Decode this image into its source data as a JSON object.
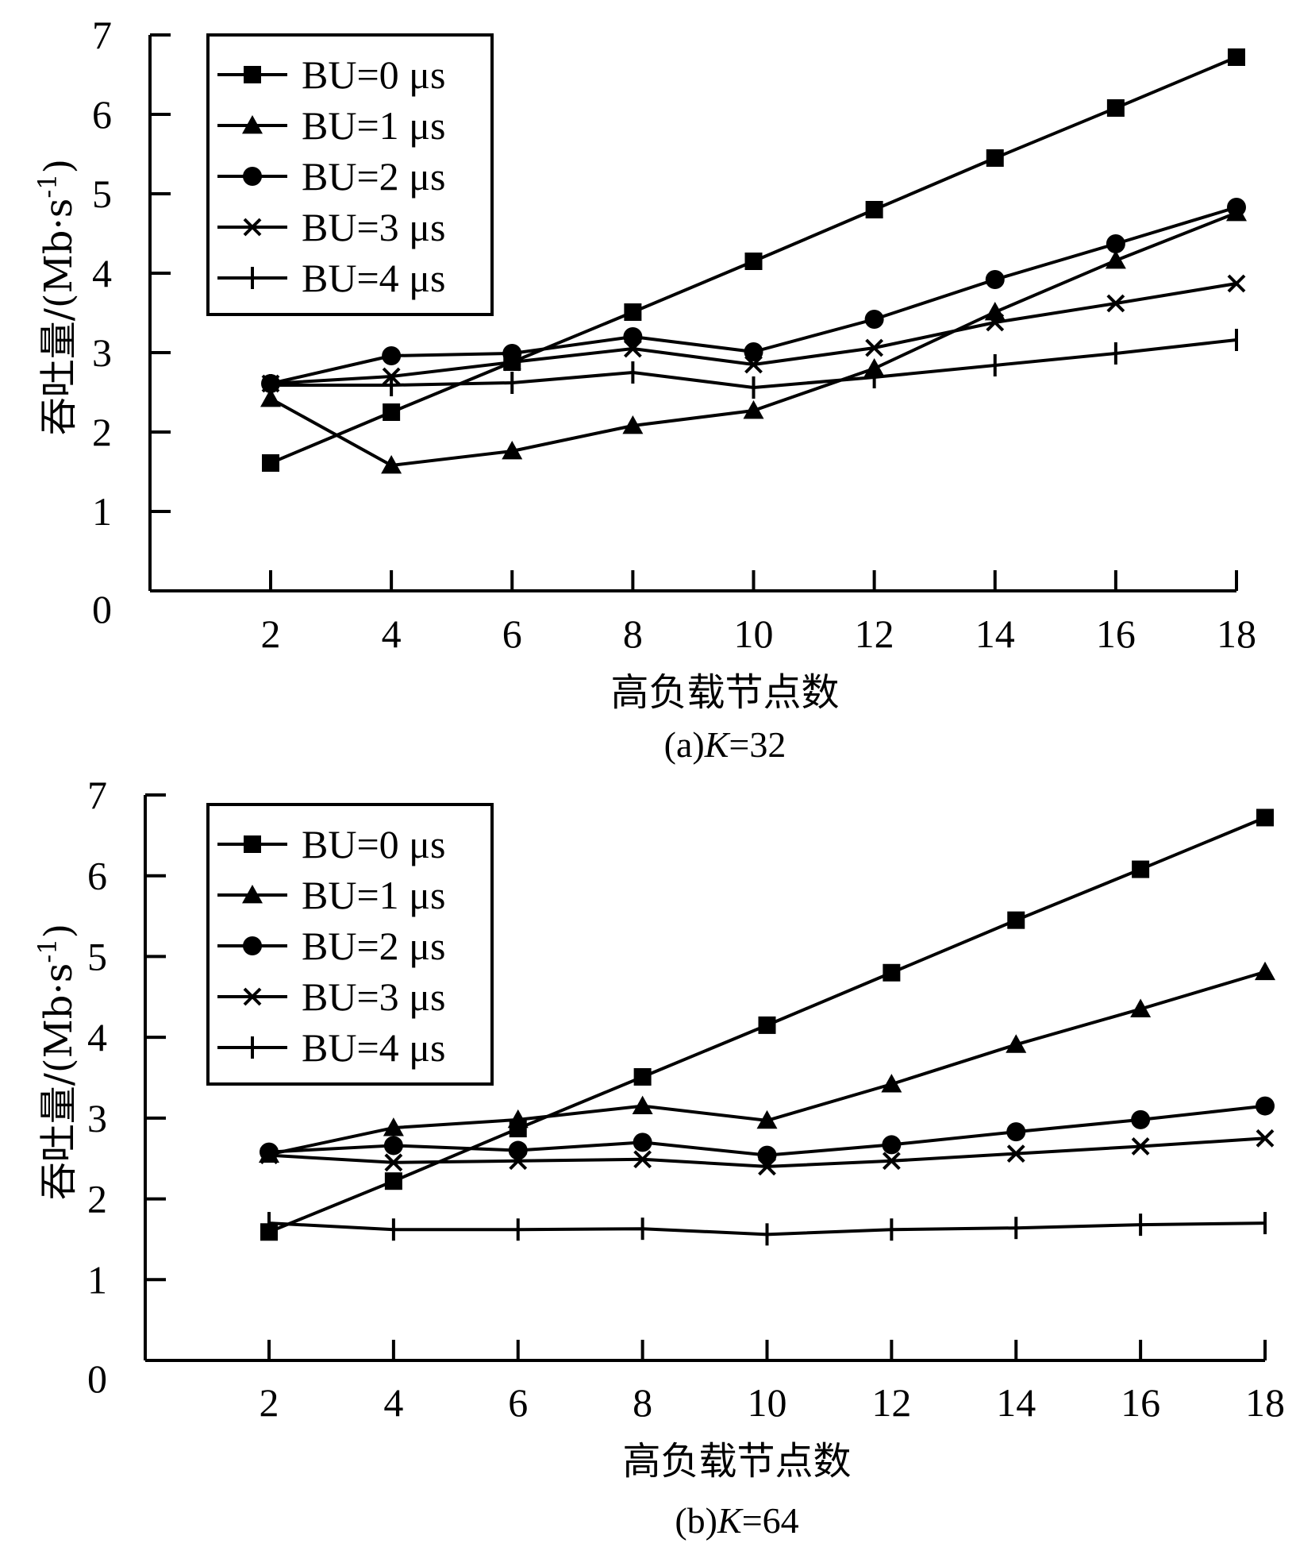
{
  "colors": {
    "ink": "#000000",
    "background": "#ffffff"
  },
  "chart_data": [
    {
      "type": "line",
      "title": "(a)K=32",
      "caption_prefix": "(a)",
      "caption_var": "K",
      "caption_value": "=32",
      "xlabel": "高负载节点数",
      "ylabel": "吞吐量/(Mb·s⁻¹)",
      "ylabel_main": "吞吐量/(Mb·s",
      "ylabel_sup": "-1",
      "ylabel_close": ")",
      "x": [
        2,
        4,
        6,
        8,
        10,
        12,
        14,
        16,
        18
      ],
      "xticks": [
        "2",
        "4",
        "6",
        "8",
        "10",
        "12",
        "14",
        "16",
        "18"
      ],
      "yticks": [
        "0",
        "1",
        "2",
        "3",
        "4",
        "5",
        "6",
        "7"
      ],
      "xlim": [
        0,
        18
      ],
      "ylim": [
        0,
        7
      ],
      "grid": false,
      "legend_position": "top-left",
      "series": [
        {
          "name": "BU=0 μs",
          "marker": "square",
          "values": [
            1.61,
            2.25,
            2.88,
            3.51,
            4.15,
            4.8,
            5.45,
            6.08,
            6.72
          ]
        },
        {
          "name": "BU=1 μs",
          "marker": "triangle",
          "values": [
            2.42,
            1.58,
            1.76,
            2.08,
            2.27,
            2.8,
            3.51,
            4.16,
            4.76
          ]
        },
        {
          "name": "BU=2 μs",
          "marker": "circle",
          "values": [
            2.61,
            2.96,
            2.99,
            3.2,
            3.01,
            3.42,
            3.92,
            4.37,
            4.83
          ]
        },
        {
          "name": "BU=3 μs",
          "marker": "x",
          "values": [
            2.61,
            2.7,
            2.88,
            3.05,
            2.85,
            3.06,
            3.38,
            3.62,
            3.87
          ]
        },
        {
          "name": "BU=4 μs",
          "marker": "plus",
          "values": [
            2.59,
            2.59,
            2.62,
            2.75,
            2.56,
            2.69,
            2.84,
            2.99,
            3.16
          ]
        }
      ]
    },
    {
      "type": "line",
      "title": "(b)K=64",
      "caption_prefix": "(b)",
      "caption_var": "K",
      "caption_value": "=64",
      "xlabel": "高负载节点数",
      "ylabel": "吞吐量/(Mb·s⁻¹)",
      "ylabel_main": "吞吐量/(Mb·s",
      "ylabel_sup": "-1",
      "ylabel_close": ")",
      "x": [
        2,
        4,
        6,
        8,
        10,
        12,
        14,
        16,
        18
      ],
      "xticks": [
        "2",
        "4",
        "6",
        "8",
        "10",
        "12",
        "14",
        "16",
        "18"
      ],
      "yticks": [
        "0",
        "1",
        "2",
        "3",
        "4",
        "5",
        "6",
        "7"
      ],
      "xlim": [
        0,
        18
      ],
      "ylim": [
        0,
        7
      ],
      "grid": false,
      "legend_position": "top-left",
      "series": [
        {
          "name": "BU=0 μs",
          "marker": "square",
          "values": [
            1.59,
            2.22,
            2.87,
            3.51,
            4.15,
            4.8,
            5.45,
            6.08,
            6.72
          ]
        },
        {
          "name": "BU=1 μs",
          "marker": "triangle",
          "values": [
            2.55,
            2.88,
            2.98,
            3.15,
            2.97,
            3.42,
            3.91,
            4.35,
            4.81
          ]
        },
        {
          "name": "BU=2 μs",
          "marker": "circle",
          "values": [
            2.58,
            2.66,
            2.6,
            2.7,
            2.54,
            2.67,
            2.83,
            2.98,
            3.15
          ]
        },
        {
          "name": "BU=3 μs",
          "marker": "x",
          "values": [
            2.54,
            2.45,
            2.47,
            2.49,
            2.4,
            2.47,
            2.56,
            2.65,
            2.75
          ]
        },
        {
          "name": "BU=4 μs",
          "marker": "plus",
          "values": [
            1.7,
            1.62,
            1.62,
            1.63,
            1.56,
            1.62,
            1.64,
            1.68,
            1.7
          ]
        }
      ]
    }
  ]
}
